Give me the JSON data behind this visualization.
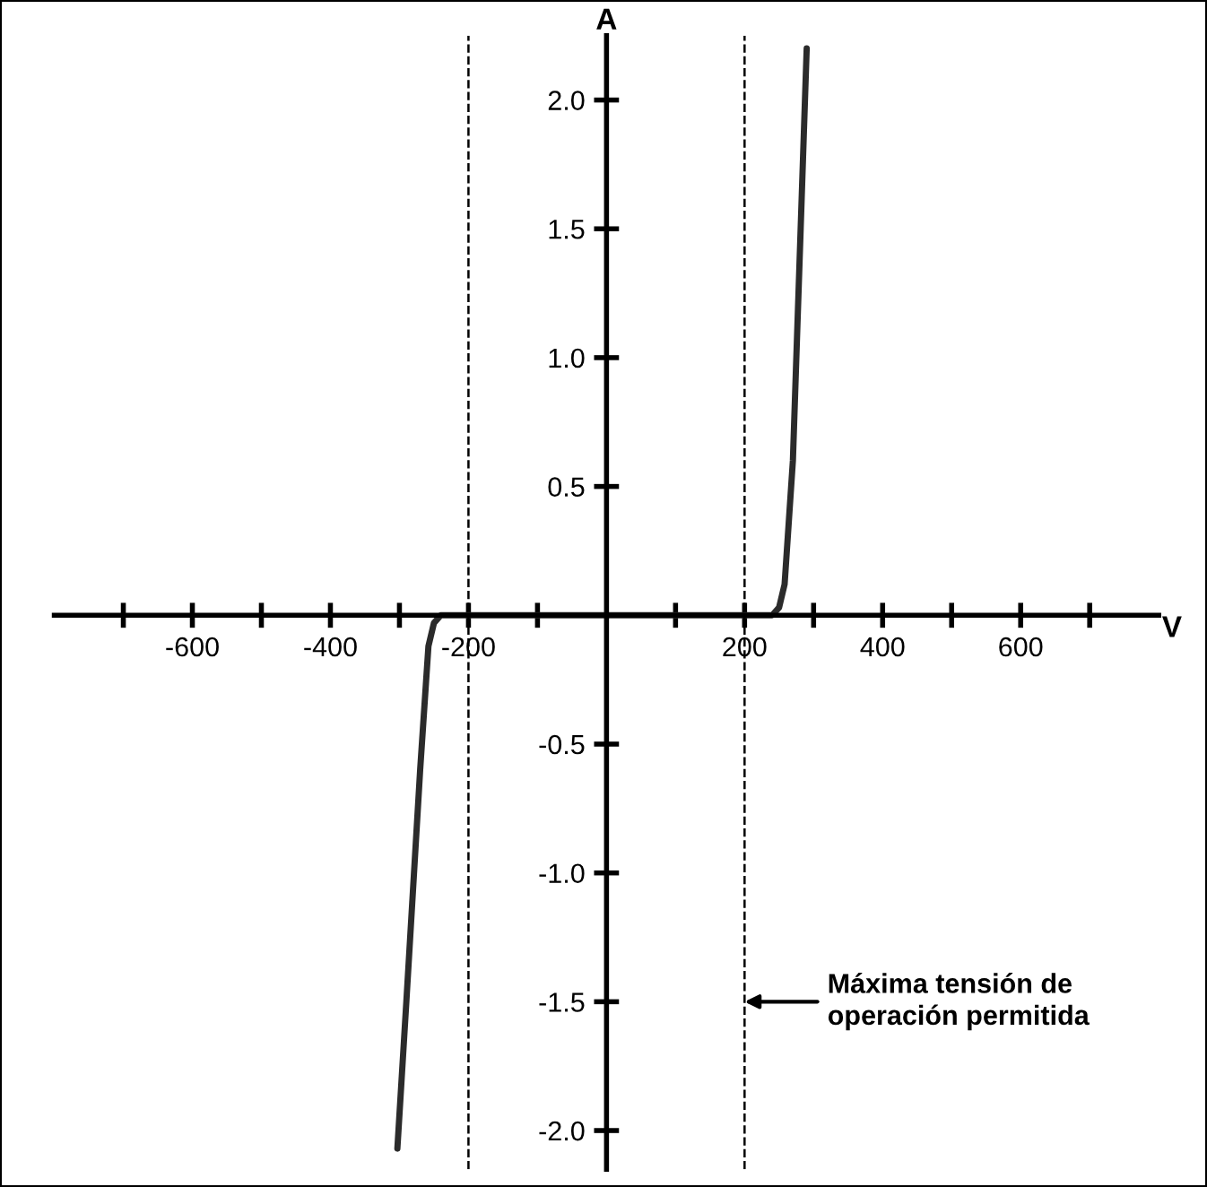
{
  "chart_data": {
    "type": "line",
    "xlabel": "V",
    "ylabel": "A",
    "series": [
      {
        "color": "#2b2b2b",
        "x": [
          -303,
          -290,
          -270,
          -258,
          -250,
          -240,
          -225,
          0,
          225,
          240,
          250,
          258,
          270,
          290
        ],
        "values": [
          -2.07,
          -1.5,
          -0.6,
          -0.12,
          -0.03,
          0,
          0,
          0,
          0,
          0,
          0.03,
          0.12,
          0.6,
          2.2
        ]
      }
    ],
    "xlim": [
      -800,
      800
    ],
    "ylim": [
      -2.15,
      2.25
    ],
    "xticks": [
      {
        "value": -700,
        "label": null
      },
      -600,
      {
        "value": -500,
        "label": null
      },
      -400,
      {
        "value": -300,
        "label": null
      },
      -200,
      {
        "value": -100,
        "label": null
      },
      {
        "value": 100,
        "label": null
      },
      200,
      {
        "value": 300,
        "label": null
      },
      400,
      {
        "value": 500,
        "label": null
      },
      600,
      {
        "value": 700,
        "label": null
      }
    ],
    "yticks": [
      {
        "value": -2,
        "label": "-2.0"
      },
      -1.5,
      {
        "value": -1,
        "label": "-1.0"
      },
      -0.5,
      0.5,
      {
        "value": 1,
        "label": "1.0"
      },
      1.5,
      {
        "value": 2,
        "label": "2.0"
      }
    ],
    "ref_lines": [
      {
        "axis": "x",
        "value": -200,
        "color": "#000000",
        "line_style": "dashed"
      },
      {
        "axis": "x",
        "value": 200,
        "color": "#000000",
        "line_style": "dashed"
      }
    ],
    "annotations": [
      {
        "text": "Máxima tensión de\noperación permitida",
        "x": 200,
        "y": -1.5
      }
    ],
    "grid": false,
    "legend": false,
    "marker": "none",
    "line_style": "solid"
  }
}
